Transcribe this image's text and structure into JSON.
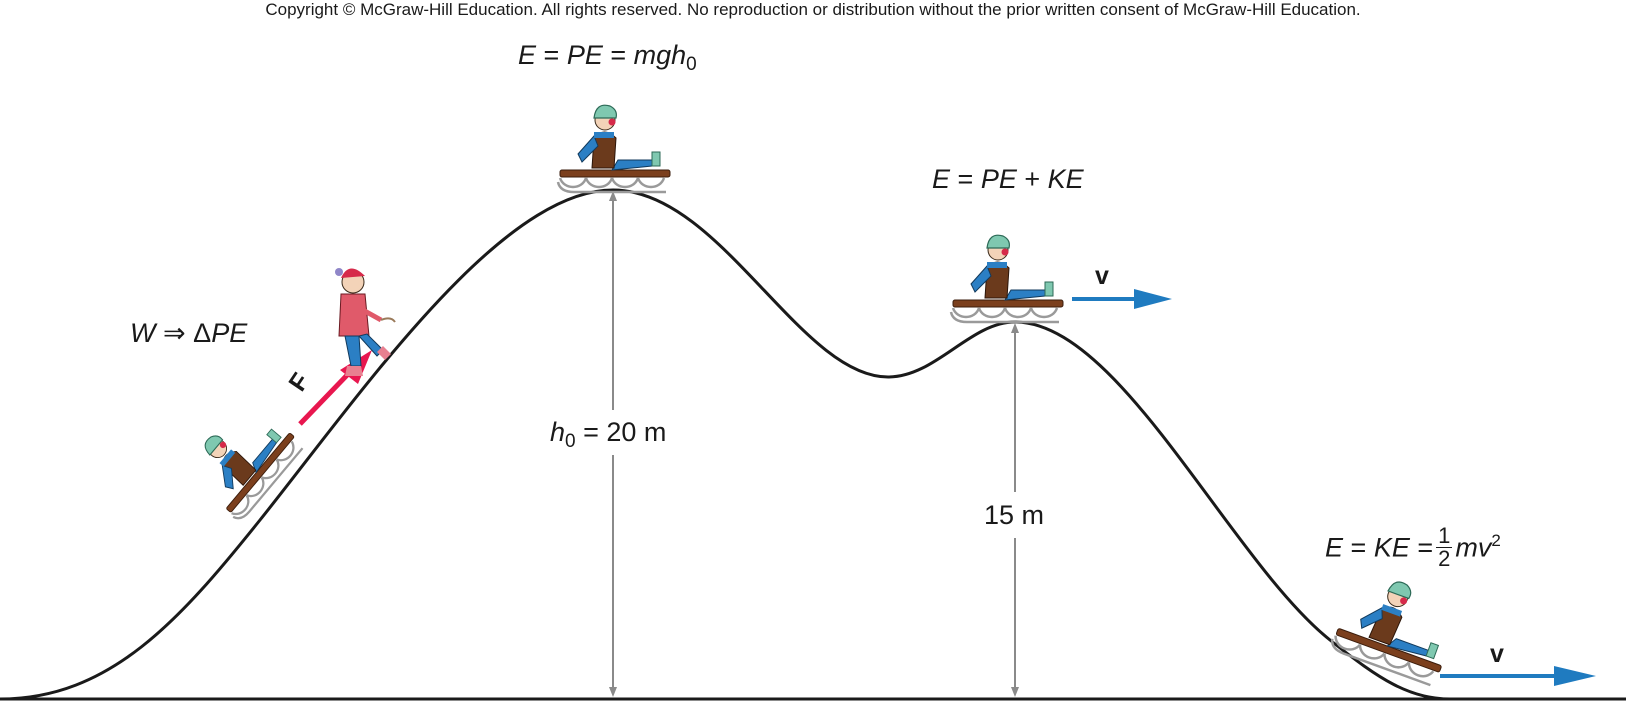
{
  "copyright": "Copyright © McGraw-Hill Education.  All rights reserved. No reproduction or distribution without the prior written consent of McGraw-Hill Education.",
  "labels": {
    "top_energy": {
      "lhs": "E",
      "mid": "PE",
      "rhs_main": "mgh",
      "rhs_sub": "0"
    },
    "work": {
      "w": "W",
      "arrow": "⇒",
      "delta": "Δ",
      "pe": "PE"
    },
    "force": "F",
    "height0": {
      "h": "h",
      "sub": "0",
      "value": " = 20 m"
    },
    "mid_energy": {
      "e": "E",
      "pe": "PE",
      "ke": "KE"
    },
    "height_mid": "15 m",
    "bottom_energy": {
      "e": "E",
      "ke": "KE",
      "num": "1",
      "den": "2",
      "mv": "mv",
      "sup": "2"
    },
    "velocity_mid": "v",
    "velocity_bottom": "v"
  },
  "colors": {
    "hill": "#1a1a1a",
    "height_arrow": "#8a8a8a",
    "force_arrow": "#e8174f",
    "velocity_arrow": "#1f7bc0",
    "sled": "#7b3f1d",
    "runner": "#9a9a9a",
    "coat": "#6b3a1c",
    "scarf": "#2b7fc4",
    "helmet": "#7fc8b0"
  },
  "icons": [
    "sledder-icon",
    "puller-icon",
    "force-arrow-icon",
    "velocity-arrow-icon"
  ]
}
